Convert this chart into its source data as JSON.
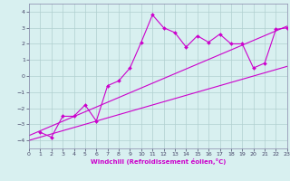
{
  "xlabel": "Windchill (Refroidissement éolien,°C)",
  "bg_color": "#d8f0f0",
  "grid_color": "#b0d0d0",
  "line_color": "#cc00cc",
  "spine_color": "#8888aa",
  "tick_color": "#444466",
  "xlim": [
    0,
    23
  ],
  "ylim": [
    -4.5,
    4.5
  ],
  "xticks": [
    0,
    1,
    2,
    3,
    4,
    5,
    6,
    7,
    8,
    9,
    10,
    11,
    12,
    13,
    14,
    15,
    16,
    17,
    18,
    19,
    20,
    21,
    22,
    23
  ],
  "yticks": [
    -4,
    -3,
    -2,
    -1,
    0,
    1,
    2,
    3,
    4
  ],
  "data_line": {
    "x": [
      1,
      2,
      3,
      4,
      5,
      6,
      7,
      8,
      9,
      10,
      11,
      12,
      13,
      14,
      15,
      16,
      17,
      18,
      19,
      20,
      21,
      22,
      23
    ],
    "y": [
      -3.5,
      -3.8,
      -2.5,
      -2.5,
      -1.8,
      -2.8,
      -0.6,
      -0.3,
      0.5,
      2.1,
      3.8,
      3.0,
      2.7,
      1.8,
      2.5,
      2.1,
      2.6,
      2.0,
      2.0,
      0.5,
      0.8,
      2.9,
      3.0
    ]
  },
  "regression_line1": {
    "x": [
      0,
      23
    ],
    "y": [
      -3.7,
      3.1
    ]
  },
  "regression_line2": {
    "x": [
      0,
      23
    ],
    "y": [
      -4.0,
      0.6
    ]
  }
}
